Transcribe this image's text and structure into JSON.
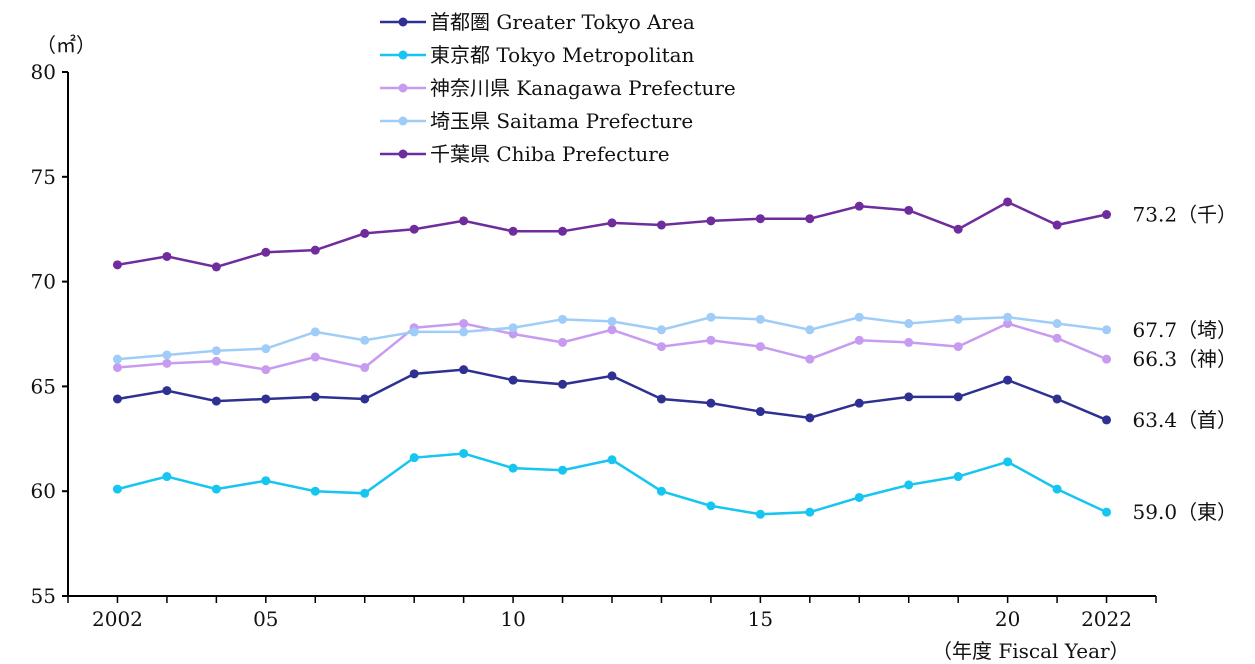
{
  "chart_data": {
    "type": "line",
    "y_unit_label": "（㎡）",
    "x_unit_label": "（年度 Fiscal Year）",
    "ylim": [
      55,
      80
    ],
    "yticks": [
      55,
      60,
      65,
      70,
      75,
      80
    ],
    "x": [
      2002,
      2003,
      2004,
      2005,
      2006,
      2007,
      2008,
      2009,
      2010,
      2011,
      2012,
      2013,
      2014,
      2015,
      2016,
      2017,
      2018,
      2019,
      2020,
      2021,
      2022
    ],
    "xtick_labels": [
      {
        "x": 2002,
        "label": "2002"
      },
      {
        "x": 2005,
        "label": "05"
      },
      {
        "x": 2010,
        "label": "10"
      },
      {
        "x": 2015,
        "label": "15"
      },
      {
        "x": 2020,
        "label": "20"
      },
      {
        "x": 2022,
        "label": "2022"
      }
    ],
    "legend_position": "top-center",
    "grid": false,
    "series": [
      {
        "name": "首都圏 Greater Tokyo Area",
        "color": "#2e3192",
        "end_label": "63.4（首）",
        "values": [
          64.4,
          64.8,
          64.3,
          64.4,
          64.5,
          64.4,
          65.6,
          65.8,
          65.3,
          65.1,
          65.5,
          64.4,
          64.2,
          63.8,
          63.5,
          64.2,
          64.5,
          64.5,
          65.3,
          64.4,
          63.4
        ]
      },
      {
        "name": "東京都 Tokyo Metropolitan",
        "color": "#16c5f0",
        "end_label": "59.0（東）",
        "values": [
          60.1,
          60.7,
          60.1,
          60.5,
          60.0,
          59.9,
          61.6,
          61.8,
          61.1,
          61.0,
          61.5,
          60.0,
          59.3,
          58.9,
          59.0,
          59.7,
          60.3,
          60.7,
          61.4,
          60.1,
          59.0
        ]
      },
      {
        "name": "神奈川県 Kanagawa Prefecture",
        "color": "#c79bef",
        "end_label": "66.3（神）",
        "values": [
          65.9,
          66.1,
          66.2,
          65.8,
          66.4,
          65.9,
          67.8,
          68.0,
          67.5,
          67.1,
          67.7,
          66.9,
          67.2,
          66.9,
          66.3,
          67.2,
          67.1,
          66.9,
          68.0,
          67.3,
          66.3
        ]
      },
      {
        "name": "埼玉県 Saitama Prefecture",
        "color": "#9fcdf7",
        "end_label": "67.7（埼）",
        "values": [
          66.3,
          66.5,
          66.7,
          66.8,
          67.6,
          67.2,
          67.6,
          67.6,
          67.8,
          68.2,
          68.1,
          67.7,
          68.3,
          68.2,
          67.7,
          68.3,
          68.0,
          68.2,
          68.3,
          68.0,
          67.7
        ]
      },
      {
        "name": "千葉県 Chiba Prefecture",
        "color": "#6e2c9c",
        "end_label": "73.2（千）",
        "values": [
          70.8,
          71.2,
          70.7,
          71.4,
          71.5,
          72.3,
          72.5,
          72.9,
          72.4,
          72.4,
          72.8,
          72.7,
          72.9,
          73.0,
          73.0,
          73.6,
          73.4,
          72.5,
          73.8,
          72.7,
          73.2
        ]
      }
    ]
  }
}
